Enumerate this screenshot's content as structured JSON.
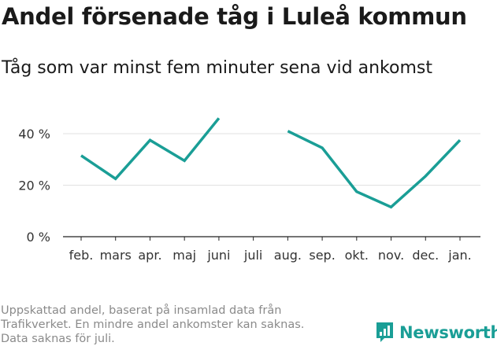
{
  "header": {
    "title": "Andel försenade tåg i Luleå kommun",
    "subtitle": "Tåg som var minst fem minuter sena vid ankomst"
  },
  "chart_data": {
    "type": "line",
    "categories": [
      "feb.",
      "mars",
      "apr.",
      "maj",
      "juni",
      "juli",
      "aug.",
      "sep.",
      "okt.",
      "nov.",
      "dec.",
      "jan."
    ],
    "series": [
      {
        "values": [
          31.5,
          22.5,
          37.5,
          29.5,
          46,
          null,
          41,
          34.5,
          17.5,
          11.5,
          23.5,
          37.5
        ]
      }
    ],
    "yticks": [
      {
        "value": 0,
        "label": "0 %"
      },
      {
        "value": 20,
        "label": "20 %"
      },
      {
        "value": 40,
        "label": "40 %"
      }
    ],
    "ylim": [
      0,
      48
    ],
    "grid": true,
    "line_color": "#1a9e96"
  },
  "footer": {
    "note_lines": [
      "Uppskattad andel, baserat på insamlad data från",
      "Trafikverket. En mindre andel ankomster kan saknas.",
      "Data saknas för juli."
    ],
    "brand": "Newsworthy",
    "brand_icon": "newsworthy-logo-icon",
    "brand_color": "#1a9e96"
  }
}
